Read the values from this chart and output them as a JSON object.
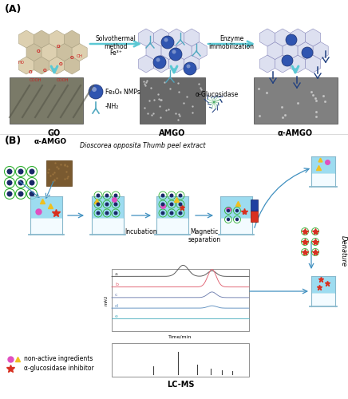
{
  "bg_color": "#ffffff",
  "panel_A_label": "(A)",
  "panel_B_label": "(B)",
  "arrow_color": "#5bc8d4",
  "arrow_text1": "Solvothermal\nmethod",
  "arrow_text1b": "Fe³⁺",
  "arrow_text2": "Enzyme\nimmobilization",
  "label_GO": "GO",
  "label_AMGO": "AMGO",
  "label_aAMGO": "α-AMGO",
  "legend_fe3o4": "Fe₃O₄ NMPs",
  "legend_nh2": "-NH₂",
  "legend_glucosidase": "α-Glucosidase",
  "label_aAMGO_B": "α-AMGO",
  "text_dioscorea": "Dioscorea opposita Thumb peel extract",
  "text_incubation": "Incubation",
  "text_magnetic": "Magnetic\nseparation",
  "text_denature": "Denature",
  "text_lcms": "LC-MS",
  "legend_nonactive": "non-active ingredients",
  "legend_inhibitor": "α-glucosidase inhibitor"
}
